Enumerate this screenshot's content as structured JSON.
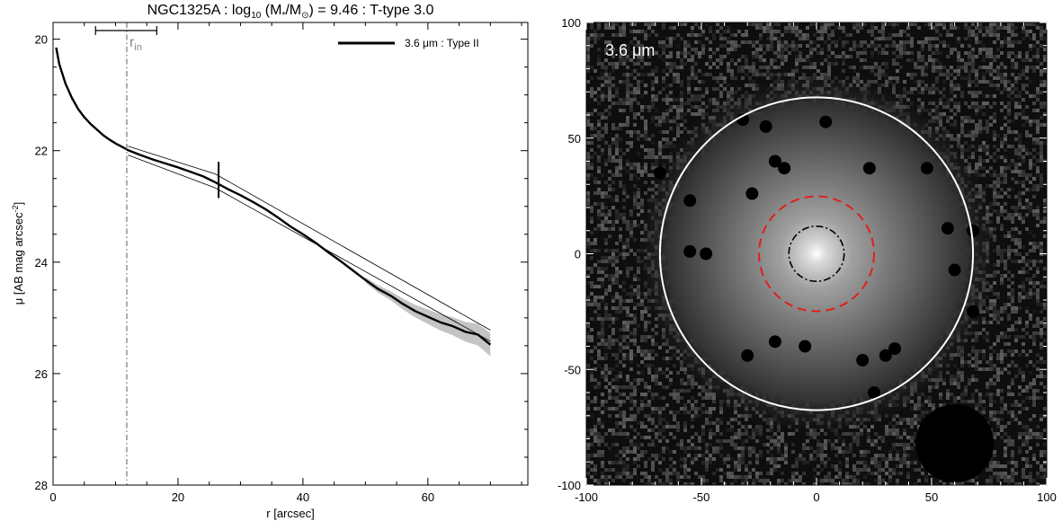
{
  "chart_data": [
    {
      "type": "line",
      "title": "NGC1325A : log",
      "title_sub": "10",
      "title_mid": " (M",
      "title_sub2": "*",
      "title_mid2": "/M",
      "title_sub3": "⊙",
      "title_end": ") = 9.46 : T-type 3.0",
      "xlabel": "r [arcsec]",
      "ylabel": "μ [AB mag arcsec",
      "ylabel_sup": "-2",
      "ylabel_end": "]",
      "xlim": [
        0,
        76
      ],
      "ylim": [
        28,
        19.7
      ],
      "xticks": [
        "0",
        "20",
        "40",
        "60"
      ],
      "yticks": [
        "20",
        "22",
        "24",
        "26",
        "28"
      ],
      "legend": "top-right",
      "series": [
        {
          "name": "3.6 μm : Type II",
          "x": [
            0.5,
            1,
            2,
            3,
            4,
            5,
            6,
            7,
            8,
            9,
            10,
            11,
            12,
            14,
            16,
            18,
            20,
            22,
            24,
            26,
            28,
            30,
            32,
            34,
            36,
            38,
            40,
            42,
            44,
            46,
            48,
            50,
            52,
            54,
            56,
            58,
            60,
            62,
            64,
            66,
            68,
            70
          ],
          "y": [
            20.15,
            20.45,
            20.8,
            21.05,
            21.25,
            21.4,
            21.52,
            21.62,
            21.72,
            21.8,
            21.87,
            21.93,
            21.99,
            22.08,
            22.16,
            22.23,
            22.3,
            22.38,
            22.46,
            22.57,
            22.69,
            22.8,
            22.92,
            23.05,
            23.2,
            23.36,
            23.5,
            23.65,
            23.82,
            23.98,
            24.15,
            24.32,
            24.48,
            24.6,
            24.75,
            24.88,
            24.98,
            25.08,
            25.15,
            25.25,
            25.3,
            25.48
          ]
        }
      ],
      "fit_upper": {
        "x": [
          12,
          26,
          70
        ],
        "y": [
          21.92,
          22.42,
          25.22
        ]
      },
      "fit_lower": {
        "x": [
          12,
          26,
          70
        ],
        "y": [
          22.08,
          22.67,
          25.42
        ]
      },
      "r_in": 11.8,
      "r_in_label": "r",
      "r_in_sub": "in",
      "r_in_errbar": [
        6.8,
        16.6
      ],
      "break_r": 26.5,
      "break_y": [
        22.2,
        22.85
      ]
    },
    {
      "type": "heatmap",
      "band_label": "3.6 μm",
      "xlim": [
        -100,
        100
      ],
      "ylim": [
        -100,
        100
      ],
      "xticks": [
        "-100",
        "-50",
        "0",
        "50",
        "100"
      ],
      "yticks": [
        "-100",
        "-50",
        "0",
        "50",
        "100"
      ],
      "outer_ellipse_radius": 68,
      "red_dashed_radius": 25,
      "inner_dashdot_radius": 12,
      "masked_sources": [
        [
          -22,
          55
        ],
        [
          -32,
          58
        ],
        [
          4,
          57
        ],
        [
          -18,
          40
        ],
        [
          -14,
          37
        ],
        [
          23,
          37
        ],
        [
          -28,
          26
        ],
        [
          -55,
          23
        ],
        [
          57,
          11
        ],
        [
          -55,
          1
        ],
        [
          -48,
          0
        ],
        [
          60,
          -7
        ],
        [
          -18,
          -38
        ],
        [
          34,
          -41
        ],
        [
          30,
          -44
        ],
        [
          -30,
          -44
        ],
        [
          20,
          -46
        ],
        [
          -68,
          35
        ],
        [
          48,
          37
        ],
        [
          68,
          10
        ],
        [
          68,
          -25
        ],
        [
          -5,
          -40
        ],
        [
          25,
          -60
        ]
      ],
      "large_blob": {
        "x": 60,
        "y": -82,
        "r": 17
      }
    }
  ]
}
